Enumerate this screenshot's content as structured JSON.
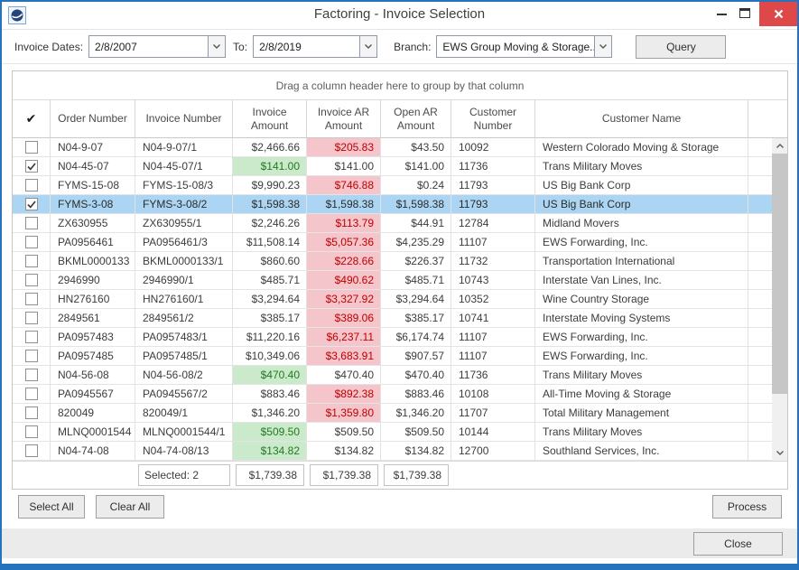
{
  "window": {
    "title": "Factoring - Invoice Selection",
    "controls": {
      "minimize": "minimize",
      "maximize": "maximize",
      "close": "close"
    }
  },
  "filters": {
    "invoice_dates_label": "Invoice Dates:",
    "date_from": "2/8/2007",
    "to_label": "To:",
    "date_to": "2/8/2019",
    "branch_label": "Branch:",
    "branch_value": "EWS Group Moving & Storage...",
    "query_label": "Query"
  },
  "grid": {
    "group_hint": "Drag a column header here to group by that column",
    "columns": [
      "Order Number",
      "Invoice Number",
      "Invoice Amount",
      "Invoice AR Amount",
      "Open AR Amount",
      "Customer Number",
      "Customer Name"
    ],
    "rows": [
      {
        "checked": false,
        "selected": false,
        "order": "N04-9-07",
        "invoice": "N04-9-07/1",
        "inv_amount": "$2,466.66",
        "inv_hl": "none",
        "ar_amount": "$205.83",
        "ar_hl": "red",
        "open_ar": "$43.50",
        "cust_num": "10092",
        "cust_name": "Western Colorado Moving & Storage"
      },
      {
        "checked": true,
        "selected": false,
        "order": "N04-45-07",
        "invoice": "N04-45-07/1",
        "inv_amount": "$141.00",
        "inv_hl": "green",
        "ar_amount": "$141.00",
        "ar_hl": "none",
        "open_ar": "$141.00",
        "cust_num": "11736",
        "cust_name": "Trans Military Moves"
      },
      {
        "checked": false,
        "selected": false,
        "order": "FYMS-15-08",
        "invoice": "FYMS-15-08/3",
        "inv_amount": "$9,990.23",
        "inv_hl": "none",
        "ar_amount": "$746.88",
        "ar_hl": "red",
        "open_ar": "$0.24",
        "cust_num": "11793",
        "cust_name": "US Big Bank Corp"
      },
      {
        "checked": true,
        "selected": true,
        "order": "FYMS-3-08",
        "invoice": "FYMS-3-08/2",
        "inv_amount": "$1,598.38",
        "inv_hl": "none",
        "ar_amount": "$1,598.38",
        "ar_hl": "none",
        "open_ar": "$1,598.38",
        "cust_num": "11793",
        "cust_name": "US Big Bank Corp"
      },
      {
        "checked": false,
        "selected": false,
        "order": "ZX630955",
        "invoice": "ZX630955/1",
        "inv_amount": "$2,246.26",
        "inv_hl": "none",
        "ar_amount": "$113.79",
        "ar_hl": "red",
        "open_ar": "$44.91",
        "cust_num": "12784",
        "cust_name": "Midland Movers"
      },
      {
        "checked": false,
        "selected": false,
        "order": "PA0956461",
        "invoice": "PA0956461/3",
        "inv_amount": "$11,508.14",
        "inv_hl": "none",
        "ar_amount": "$5,057.36",
        "ar_hl": "red",
        "open_ar": "$4,235.29",
        "cust_num": "11107",
        "cust_name": "EWS Forwarding, Inc."
      },
      {
        "checked": false,
        "selected": false,
        "order": "BKML0000133",
        "invoice": "BKML0000133/1",
        "inv_amount": "$860.60",
        "inv_hl": "none",
        "ar_amount": "$228.66",
        "ar_hl": "red",
        "open_ar": "$226.37",
        "cust_num": "11732",
        "cust_name": "Transportation International"
      },
      {
        "checked": false,
        "selected": false,
        "order": "2946990",
        "invoice": "2946990/1",
        "inv_amount": "$485.71",
        "inv_hl": "none",
        "ar_amount": "$490.62",
        "ar_hl": "red",
        "open_ar": "$485.71",
        "cust_num": "10743",
        "cust_name": "Interstate Van Lines, Inc."
      },
      {
        "checked": false,
        "selected": false,
        "order": "HN276160",
        "invoice": "HN276160/1",
        "inv_amount": "$3,294.64",
        "inv_hl": "none",
        "ar_amount": "$3,327.92",
        "ar_hl": "red",
        "open_ar": "$3,294.64",
        "cust_num": "10352",
        "cust_name": "Wine Country Storage"
      },
      {
        "checked": false,
        "selected": false,
        "order": "2849561",
        "invoice": "2849561/2",
        "inv_amount": "$385.17",
        "inv_hl": "none",
        "ar_amount": "$389.06",
        "ar_hl": "red",
        "open_ar": "$385.17",
        "cust_num": "10741",
        "cust_name": "Interstate Moving Systems"
      },
      {
        "checked": false,
        "selected": false,
        "order": "PA0957483",
        "invoice": "PA0957483/1",
        "inv_amount": "$11,220.16",
        "inv_hl": "none",
        "ar_amount": "$6,237.11",
        "ar_hl": "red",
        "open_ar": "$6,174.74",
        "cust_num": "11107",
        "cust_name": "EWS Forwarding, Inc."
      },
      {
        "checked": false,
        "selected": false,
        "order": "PA0957485",
        "invoice": "PA0957485/1",
        "inv_amount": "$10,349.06",
        "inv_hl": "none",
        "ar_amount": "$3,683.91",
        "ar_hl": "red",
        "open_ar": "$907.57",
        "cust_num": "11107",
        "cust_name": "EWS Forwarding, Inc."
      },
      {
        "checked": false,
        "selected": false,
        "order": "N04-56-08",
        "invoice": "N04-56-08/2",
        "inv_amount": "$470.40",
        "inv_hl": "green",
        "ar_amount": "$470.40",
        "ar_hl": "none",
        "open_ar": "$470.40",
        "cust_num": "11736",
        "cust_name": "Trans Military Moves"
      },
      {
        "checked": false,
        "selected": false,
        "order": "PA0945567",
        "invoice": "PA0945567/2",
        "inv_amount": "$883.46",
        "inv_hl": "none",
        "ar_amount": "$892.38",
        "ar_hl": "red",
        "open_ar": "$883.46",
        "cust_num": "10108",
        "cust_name": "All-Time Moving & Storage"
      },
      {
        "checked": false,
        "selected": false,
        "order": "820049",
        "invoice": "820049/1",
        "inv_amount": "$1,346.20",
        "inv_hl": "none",
        "ar_amount": "$1,359.80",
        "ar_hl": "red",
        "open_ar": "$1,346.20",
        "cust_num": "11707",
        "cust_name": "Total Military Management"
      },
      {
        "checked": false,
        "selected": false,
        "order": "MLNQ0001544",
        "invoice": "MLNQ0001544/1",
        "inv_amount": "$509.50",
        "inv_hl": "green",
        "ar_amount": "$509.50",
        "ar_hl": "none",
        "open_ar": "$509.50",
        "cust_num": "10144",
        "cust_name": "Trans Military Moves"
      },
      {
        "checked": false,
        "selected": false,
        "order": "N04-74-08",
        "invoice": "N04-74-08/13",
        "inv_amount": "$134.82",
        "inv_hl": "green",
        "ar_amount": "$134.82",
        "ar_hl": "none",
        "open_ar": "$134.82",
        "cust_num": "12700",
        "cust_name": "Southland Services, Inc."
      }
    ],
    "footer": {
      "selected_label": "Selected: 2",
      "invoice_amount_total": "$1,739.38",
      "ar_amount_total": "$1,739.38",
      "open_ar_total": "$1,739.38"
    }
  },
  "buttons": {
    "select_all": "Select All",
    "clear_all": "Clear All",
    "process": "Process",
    "close": "Close"
  },
  "colors": {
    "accent_blue": "#2573BD",
    "selected_row": "#ABD5F2",
    "negative_bg": "#F4C5CB",
    "negative_text": "#C00000",
    "positive_bg": "#CBE9CB",
    "positive_text": "#217A21",
    "close_button": "#DE4848"
  }
}
